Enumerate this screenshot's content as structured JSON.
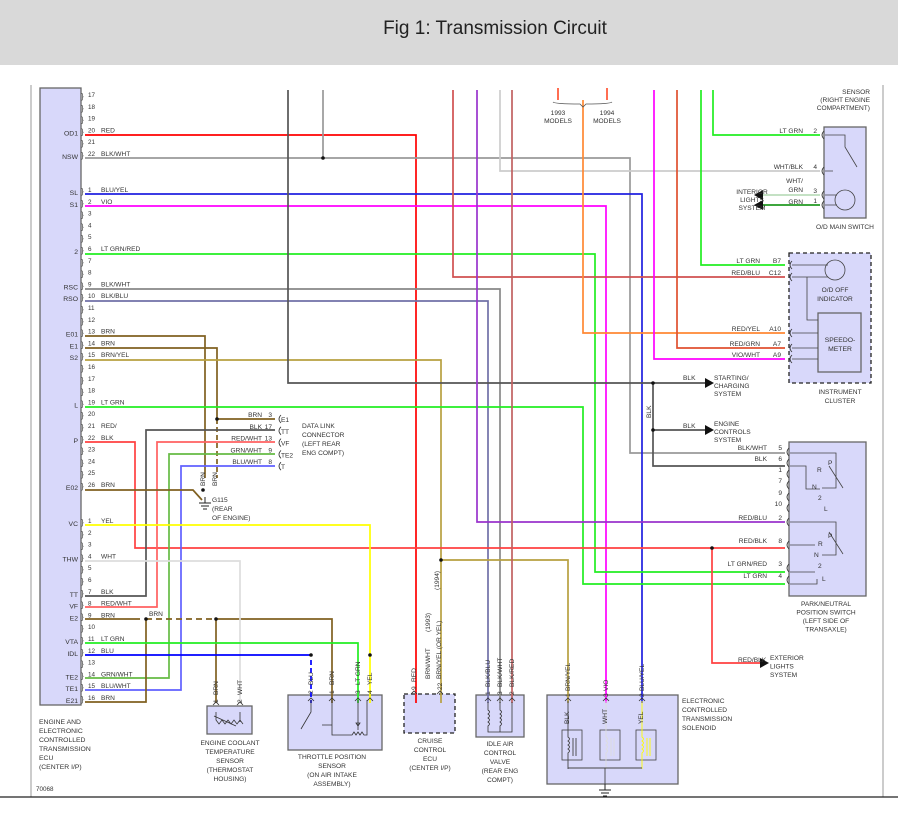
{
  "header": {
    "title": "Fig 1: Transmission Circuit"
  },
  "figure_id": "70068",
  "ecu": {
    "pins_a": [
      {
        "n": "17",
        "name": "",
        "wire": ""
      },
      {
        "n": "18",
        "name": "",
        "wire": ""
      },
      {
        "n": "19",
        "name": "",
        "wire": ""
      },
      {
        "n": "20",
        "name": "OD1",
        "wire": "RED"
      },
      {
        "n": "21",
        "name": "",
        "wire": ""
      },
      {
        "n": "22",
        "name": "NSW",
        "wire": "BLK/WHT"
      }
    ],
    "pins_b": [
      {
        "n": "1",
        "name": "SL",
        "wire": "BLU/YEL"
      },
      {
        "n": "2",
        "name": "S1",
        "wire": "VIO"
      },
      {
        "n": "3",
        "name": "",
        "wire": ""
      },
      {
        "n": "4",
        "name": "",
        "wire": ""
      },
      {
        "n": "5",
        "name": "",
        "wire": ""
      },
      {
        "n": "6",
        "name": "2",
        "wire": "LT GRN/RED"
      },
      {
        "n": "7",
        "name": "",
        "wire": ""
      },
      {
        "n": "8",
        "name": "",
        "wire": ""
      },
      {
        "n": "9",
        "name": "RSC",
        "wire": "BLK/WHT"
      },
      {
        "n": "10",
        "name": "RSO",
        "wire": "BLK/BLU"
      },
      {
        "n": "11",
        "name": "",
        "wire": ""
      },
      {
        "n": "12",
        "name": "",
        "wire": ""
      },
      {
        "n": "13",
        "name": "E01",
        "wire": "BRN"
      },
      {
        "n": "14",
        "name": "E1",
        "wire": "BRN"
      },
      {
        "n": "15",
        "name": "S2",
        "wire": "BRN/YEL"
      },
      {
        "n": "16",
        "name": "",
        "wire": ""
      },
      {
        "n": "17",
        "name": "",
        "wire": ""
      },
      {
        "n": "18",
        "name": "",
        "wire": ""
      },
      {
        "n": "19",
        "name": "L",
        "wire": "LT GRN"
      },
      {
        "n": "20",
        "name": "",
        "wire": ""
      },
      {
        "n": "21",
        "name": "",
        "wire": "RED/"
      },
      {
        "n": "22",
        "name": "P",
        "wire": "BLK"
      },
      {
        "n": "23",
        "name": "",
        "wire": ""
      },
      {
        "n": "24",
        "name": "",
        "wire": ""
      },
      {
        "n": "25",
        "name": "",
        "wire": ""
      },
      {
        "n": "26",
        "name": "E02",
        "wire": "BRN"
      }
    ],
    "pins_c": [
      {
        "n": "1",
        "name": "VC",
        "wire": "YEL"
      },
      {
        "n": "2",
        "name": "",
        "wire": ""
      },
      {
        "n": "3",
        "name": "",
        "wire": ""
      },
      {
        "n": "4",
        "name": "THW",
        "wire": "WHT"
      },
      {
        "n": "5",
        "name": "",
        "wire": ""
      },
      {
        "n": "6",
        "name": "",
        "wire": ""
      },
      {
        "n": "7",
        "name": "TT",
        "wire": "BLK"
      },
      {
        "n": "8",
        "name": "VF",
        "wire": "RED/WHT"
      },
      {
        "n": "9",
        "name": "E2",
        "wire": "BRN"
      },
      {
        "n": "10",
        "name": "",
        "wire": ""
      },
      {
        "n": "11",
        "name": "VTA",
        "wire": "LT GRN"
      },
      {
        "n": "12",
        "name": "IDL",
        "wire": "BLU"
      },
      {
        "n": "13",
        "name": "",
        "wire": ""
      },
      {
        "n": "14",
        "name": "TE2",
        "wire": "GRN/WHT"
      },
      {
        "n": "15",
        "name": "TE1",
        "wire": "BLU/WHT"
      },
      {
        "n": "16",
        "name": "E21",
        "wire": "BRN"
      }
    ],
    "label": [
      "ENGINE AND",
      "ELECTRONIC",
      "CONTROLLED",
      "TRANSMISSION",
      "ECU",
      "(CENTER I/P)"
    ]
  },
  "splice_label": "BRN",
  "dlc": {
    "pins": [
      {
        "wire": "BRN",
        "n": "3",
        "name": "E1"
      },
      {
        "wire": "BLK",
        "n": "17",
        "name": "TT"
      },
      {
        "wire": "RED/WHT",
        "n": "13",
        "name": "VF"
      },
      {
        "wire": "GRN/WHT",
        "n": "9",
        "name": "TE2"
      },
      {
        "wire": "BLU/WHT",
        "n": "8",
        "name": "T"
      }
    ],
    "label": [
      "DATA LINK",
      "CONNECTOR",
      "(LEFT REAR",
      "ENG COMPT)"
    ]
  },
  "ground": {
    "wires": [
      "BRN",
      "BRN"
    ],
    "label": [
      "G115",
      "(REAR",
      "OF ENGINE)"
    ]
  },
  "ect_sensor": {
    "pins": [
      "1",
      "2"
    ],
    "wires": [
      "BRN",
      "WHT"
    ],
    "label": [
      "ENGINE COOLANT",
      "TEMPERATURE",
      "SENSOR",
      "(THERMOSTAT",
      "HOUSING)"
    ]
  },
  "tps": {
    "pins": [
      "2",
      "1",
      "3",
      "4"
    ],
    "wires": [
      "BLU",
      "BRN",
      "LT GRN",
      "YEL"
    ],
    "label": [
      "THROTTLE POSITION",
      "SENSOR",
      "(ON AIR INTAKE",
      "ASSEMBLY)"
    ]
  },
  "cruise": {
    "pins": [
      "9",
      "22"
    ],
    "wires": [
      "RED",
      "BRN/WHT",
      "BRN/YEL (OR YEL)"
    ],
    "years": [
      "(1993)",
      "(1994)"
    ],
    "label": [
      "CRUISE",
      "CONTROL",
      "ECU",
      "(CENTER I/P)"
    ]
  },
  "iac": {
    "pins": [
      "1",
      "3",
      "2"
    ],
    "wires": [
      "BLK/BLU",
      "BLK/WHT",
      "BLK/RED"
    ],
    "label": [
      "IDLE AIR",
      "CONTROL",
      "VALVE",
      "(REAR ENG",
      "COMPT)"
    ]
  },
  "solenoid": {
    "pins": [
      "1",
      "3",
      "2"
    ],
    "wires": [
      "BRN/YEL",
      "VIO",
      "BLU/YEL"
    ],
    "inner_wires": [
      "BLK",
      "WHT",
      "YEL"
    ],
    "label": [
      "ELECTRONIC",
      "CONTROLLED",
      "TRANSMISSION",
      "SOLENOID"
    ]
  },
  "models": [
    [
      "1993",
      "MODELS"
    ],
    [
      "1994",
      "MODELS"
    ]
  ],
  "od_switch": {
    "sensor_label": [
      "SENSOR",
      "(RIGHT ENGINE",
      "COMPARTMENT)"
    ],
    "pins": [
      {
        "wire": "LT GRN",
        "n": "2"
      },
      {
        "wire": "WHT/BLK",
        "n": "4"
      },
      {
        "wire": "WHT/",
        "wire2": "GRN",
        "n": "3"
      },
      {
        "wire": "GRN",
        "n": "1"
      }
    ],
    "interior": [
      "INTERIOR",
      "LIGHTS",
      "SYSTEM"
    ],
    "label": "O/D MAIN SWITCH"
  },
  "cluster": {
    "pins": [
      {
        "wire": "LT GRN",
        "n": "B7"
      },
      {
        "wire": "RED/BLU",
        "n": "C12"
      },
      {
        "wire": "RED/YEL",
        "n": "A10"
      },
      {
        "wire": "RED/GRN",
        "n": "A7"
      },
      {
        "wire": "VIO/WHT",
        "n": "A9"
      }
    ],
    "indicator": [
      "O/D OFF",
      "INDICATOR"
    ],
    "speedo": [
      "SPEEDO-",
      "METER"
    ],
    "label": [
      "INSTRUMENT",
      "CLUSTER"
    ]
  },
  "starting": {
    "wire": "BLK",
    "label": [
      "STARTING/",
      "CHARGING",
      "SYSTEM"
    ]
  },
  "engine_controls": {
    "wire": "BLK",
    "vwire": "BLK",
    "label": [
      "ENGINE",
      "CONTROLS",
      "SYSTEM"
    ]
  },
  "pnp": {
    "pins": [
      {
        "wire": "BLK/WHT",
        "n": "5"
      },
      {
        "wire": "BLK",
        "n": "6"
      },
      {
        "wire": "",
        "n": "1"
      },
      {
        "wire": "",
        "n": "7"
      },
      {
        "wire": "",
        "n": "9"
      },
      {
        "wire": "",
        "n": "10"
      },
      {
        "wire": "RED/BLU",
        "n": "2"
      },
      {
        "wire": "RED/BLK",
        "n": "8"
      },
      {
        "wire": "LT GRN/RED",
        "n": "3"
      },
      {
        "wire": "LT GRN",
        "n": "4"
      }
    ],
    "positions": [
      "P",
      "R",
      "N",
      "2",
      "L"
    ],
    "label": [
      "PARK/NEUTRAL",
      "POSITION SWITCH",
      "(LEFT SIDE OF",
      "TRANSAXLE)"
    ]
  },
  "exterior": {
    "wire": "RED/BLK",
    "label": [
      "EXTERIOR",
      "LIGHTS",
      "SYSTEM"
    ]
  },
  "colors": {
    "component_fill": "#d8d8fa",
    "header_bg": "#d9d9d9",
    "red": "#ff0000",
    "blu": "#2020ff",
    "vio": "#ff00ff",
    "lt_grn": "#22ee22",
    "brn": "#806020",
    "yel": "#ffff00"
  }
}
